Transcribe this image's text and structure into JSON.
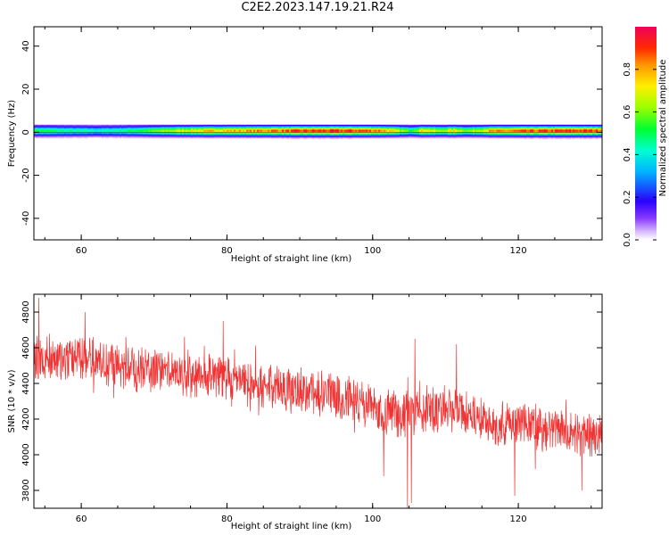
{
  "title": "C2E2.2023.147.19.21.R24",
  "chart_data": [
    {
      "type": "heatmap",
      "name": "spectrogram",
      "xlabel": "Height of straight line (km)",
      "ylabel": "Frequency (Hz)",
      "xlim": [
        53.5,
        131.5
      ],
      "ylim": [
        -50,
        49
      ],
      "xticks": [
        60,
        80,
        100,
        120
      ],
      "yticks": [
        40,
        20,
        0,
        -20,
        -40
      ],
      "band": {
        "center_hz": 0,
        "half_width_hz": 3.5,
        "profile": [
          {
            "x": 53.5,
            "v": 0.52
          },
          {
            "x": 58,
            "v": 0.46
          },
          {
            "x": 62,
            "v": 0.42
          },
          {
            "x": 66,
            "v": 0.48
          },
          {
            "x": 70,
            "v": 0.58
          },
          {
            "x": 74,
            "v": 0.7
          },
          {
            "x": 78,
            "v": 0.78
          },
          {
            "x": 82,
            "v": 0.8
          },
          {
            "x": 86,
            "v": 0.86
          },
          {
            "x": 90,
            "v": 0.9
          },
          {
            "x": 94,
            "v": 0.92
          },
          {
            "x": 98,
            "v": 0.9
          },
          {
            "x": 101,
            "v": 0.86
          },
          {
            "x": 103,
            "v": 0.7
          },
          {
            "x": 105,
            "v": 0.55
          },
          {
            "x": 107,
            "v": 0.78
          },
          {
            "x": 109,
            "v": 0.62
          },
          {
            "x": 111,
            "v": 0.74
          },
          {
            "x": 113,
            "v": 0.6
          },
          {
            "x": 116,
            "v": 0.8
          },
          {
            "x": 120,
            "v": 0.86
          },
          {
            "x": 124,
            "v": 0.9
          },
          {
            "x": 128,
            "v": 0.92
          },
          {
            "x": 131.5,
            "v": 0.9
          }
        ]
      },
      "colorbar": {
        "label": "Normalized spectral amplitude",
        "ticks": [
          0.0,
          0.2,
          0.4,
          0.6,
          0.8
        ],
        "tick_labels": [
          "0.0",
          "0.2",
          "0.4",
          "0.6",
          "0.8"
        ],
        "range": [
          0,
          1
        ]
      }
    },
    {
      "type": "line",
      "name": "snr",
      "xlabel": "Height of straight line (km)",
      "ylabel": "SNR (10 * v/v)",
      "xlim": [
        53.5,
        131.5
      ],
      "ylim": [
        3700,
        4900
      ],
      "xticks": [
        60,
        80,
        100,
        120
      ],
      "yticks": [
        3800,
        4000,
        4200,
        4400,
        4600,
        4800
      ],
      "line_color": "#f03232",
      "trend": [
        {
          "x": 53.5,
          "y": 4540
        },
        {
          "x": 60,
          "y": 4540
        },
        {
          "x": 66,
          "y": 4490
        },
        {
          "x": 72,
          "y": 4460
        },
        {
          "x": 78,
          "y": 4440
        },
        {
          "x": 84,
          "y": 4390
        },
        {
          "x": 90,
          "y": 4360
        },
        {
          "x": 96,
          "y": 4320
        },
        {
          "x": 100,
          "y": 4260
        },
        {
          "x": 104,
          "y": 4220
        },
        {
          "x": 108,
          "y": 4260
        },
        {
          "x": 112,
          "y": 4240
        },
        {
          "x": 116,
          "y": 4190
        },
        {
          "x": 120,
          "y": 4170
        },
        {
          "x": 124,
          "y": 4140
        },
        {
          "x": 128,
          "y": 4110
        },
        {
          "x": 131.5,
          "y": 4100
        }
      ],
      "features": [
        {
          "x": 54.2,
          "y": 4880
        },
        {
          "x": 60.5,
          "y": 4800
        },
        {
          "x": 79.5,
          "y": 4750
        },
        {
          "x": 104.8,
          "y": 3700
        },
        {
          "x": 105.3,
          "y": 3730
        },
        {
          "x": 101.5,
          "y": 3880
        },
        {
          "x": 105.8,
          "y": 4650
        },
        {
          "x": 111.5,
          "y": 4620
        },
        {
          "x": 119.5,
          "y": 3770
        },
        {
          "x": 128.7,
          "y": 3800
        }
      ],
      "noise_amplitude": 110
    }
  ]
}
